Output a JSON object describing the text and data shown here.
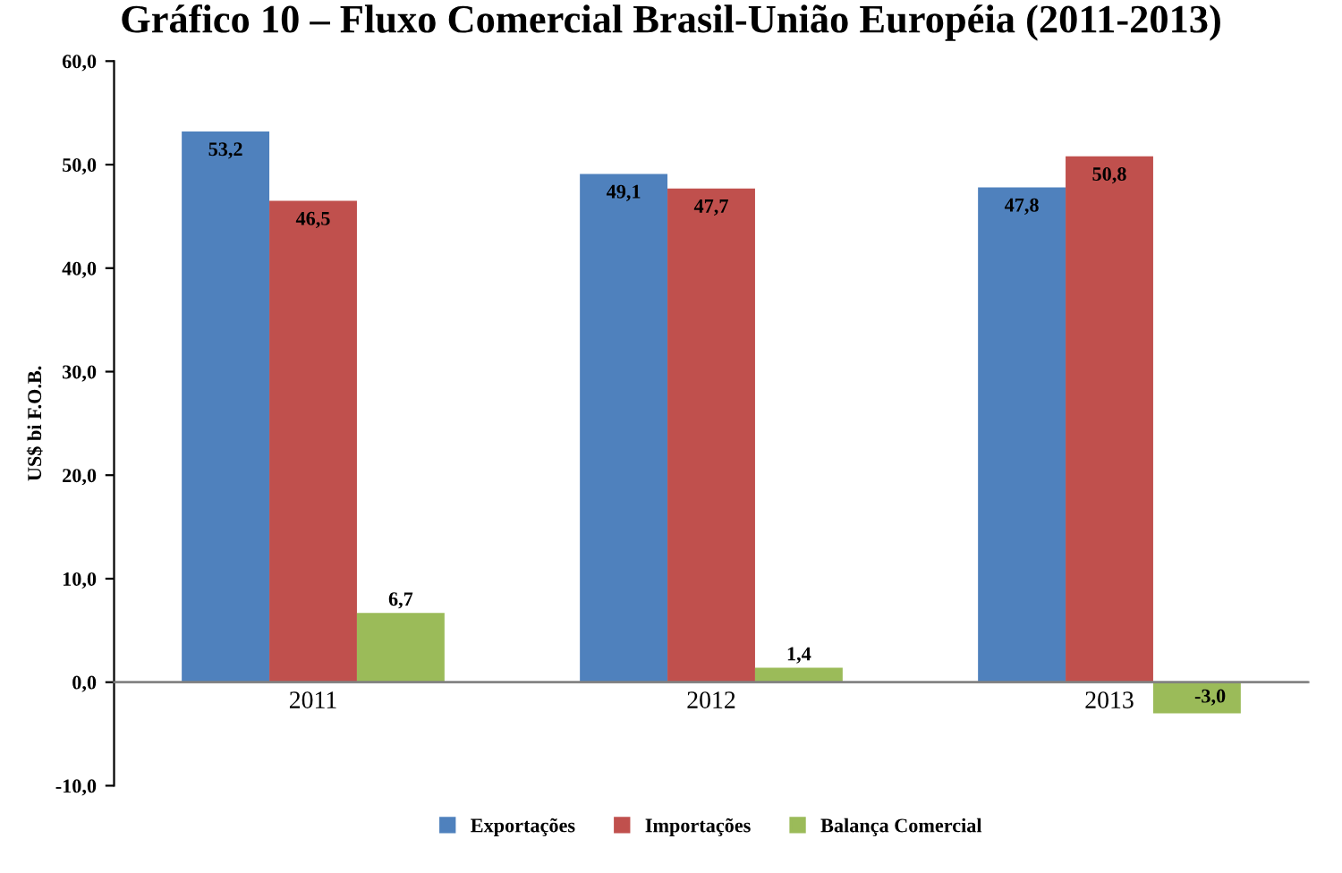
{
  "chart_data": {
    "type": "bar",
    "title": "Gráfico 10 – Fluxo Comercial Brasil-União Européia (2011-2013)",
    "ylabel": "US$ bi F.O.B.",
    "categories": [
      "2011",
      "2012",
      "2013"
    ],
    "series": [
      {
        "name": "Exportações",
        "color": "#4f81bd",
        "values": [
          53.2,
          49.1,
          47.8
        ],
        "value_labels": [
          "53,2",
          "49,1",
          "47,8"
        ]
      },
      {
        "name": "Importações",
        "color": "#c0504d",
        "values": [
          46.5,
          47.7,
          50.8
        ],
        "value_labels": [
          "46,5",
          "47,7",
          "50,8"
        ]
      },
      {
        "name": "Balança Comercial",
        "color": "#9bbb59",
        "values": [
          6.7,
          1.4,
          -3.0
        ],
        "value_labels": [
          "6,7",
          "1,4",
          "-3,0"
        ]
      }
    ],
    "ylim": [
      -10,
      60
    ],
    "yticks": [
      {
        "value": -10,
        "label": "-10,0"
      },
      {
        "value": 0,
        "label": "0,0"
      },
      {
        "value": 10,
        "label": "10,0"
      },
      {
        "value": 20,
        "label": "20,0"
      },
      {
        "value": 30,
        "label": "30,0"
      },
      {
        "value": 40,
        "label": "40,0"
      },
      {
        "value": 50,
        "label": "50,0"
      },
      {
        "value": 60,
        "label": "60,0"
      }
    ],
    "grid": false,
    "legend": "bottom"
  }
}
